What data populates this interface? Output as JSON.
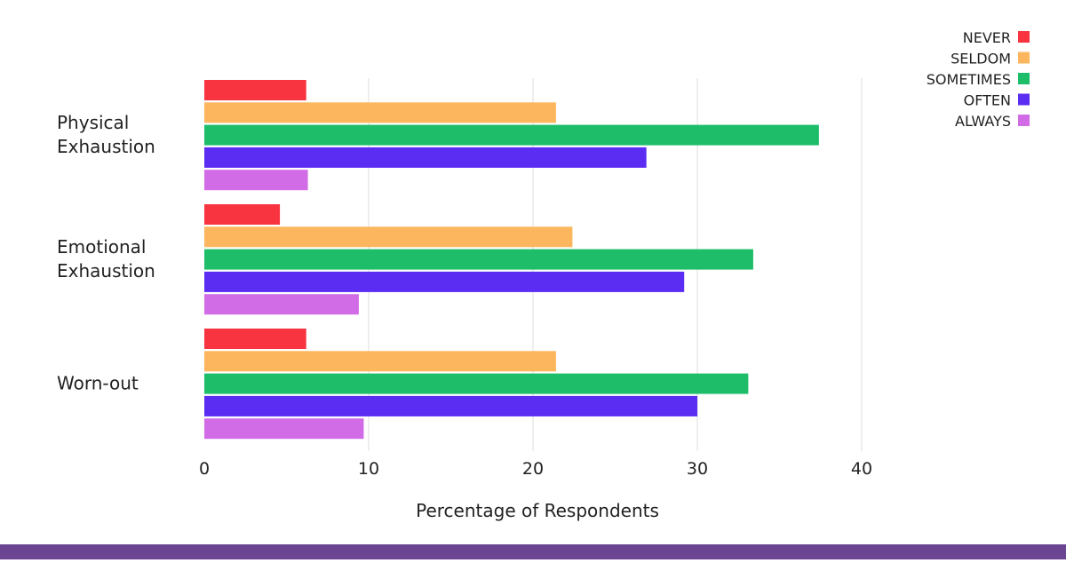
{
  "chart_data": {
    "type": "bar",
    "orientation": "horizontal",
    "categories": [
      "Physical\nExhaustion",
      "Emotional\nExhaustion",
      "Worn-out"
    ],
    "series": [
      {
        "name": "NEVER",
        "color": "#f7343f",
        "values": [
          6.2,
          4.6,
          6.2
        ]
      },
      {
        "name": "SELDOM",
        "color": "#fcb75e",
        "values": [
          21.4,
          22.4,
          21.4
        ]
      },
      {
        "name": "SOMETIMES",
        "color": "#1dbd6a",
        "values": [
          37.4,
          33.4,
          33.1
        ]
      },
      {
        "name": "OFTEN",
        "color": "#5b2cf2",
        "values": [
          26.9,
          29.2,
          30.0
        ]
      },
      {
        "name": "ALWAYS",
        "color": "#d16ce6",
        "values": [
          6.3,
          9.4,
          9.7
        ]
      }
    ],
    "xlabel": "Percentage of Respondents",
    "ylabel": "",
    "xlim": [
      0,
      40
    ],
    "xticks": [
      0,
      10,
      20,
      30,
      40
    ],
    "grid": true,
    "legend_position": "top-right"
  },
  "footer_color": "#6b4591"
}
